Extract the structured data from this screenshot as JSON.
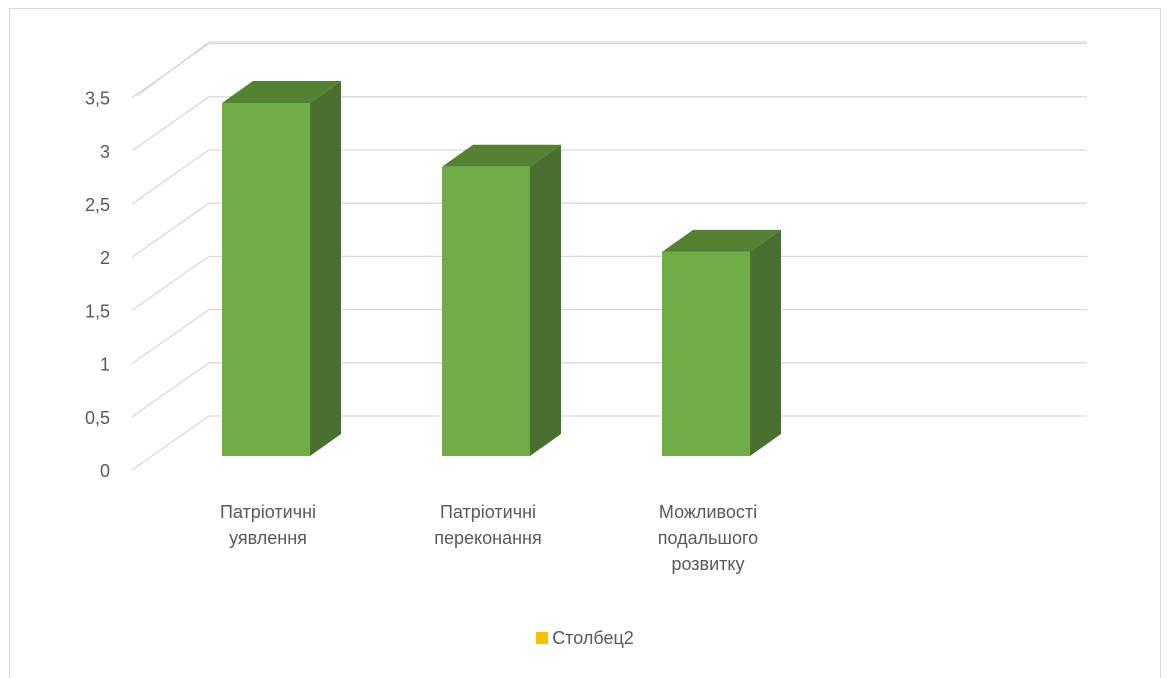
{
  "chart_data": {
    "type": "bar",
    "style": "3d-column",
    "categories": [
      [
        "Патріотичні",
        "уявлення"
      ],
      [
        "Патріотичні",
        "переконання"
      ],
      [
        "Можливості",
        "подальшого",
        "розвитку"
      ],
      [
        ""
      ]
    ],
    "values": [
      3.6,
      3.0,
      2.2,
      null
    ],
    "ylim": [
      0,
      3.5
    ],
    "yticks": [
      "0",
      "0,5",
      "1",
      "1,5",
      "2",
      "2,5",
      "3",
      "3,5"
    ],
    "grid": true,
    "legend": {
      "label": "Столбец2",
      "color": "#ffc000",
      "placement": "bottom"
    },
    "colors": {
      "front": "#70ad47",
      "side": "#4a7030",
      "top": "#548235",
      "grid": "#d9d9d9"
    }
  }
}
